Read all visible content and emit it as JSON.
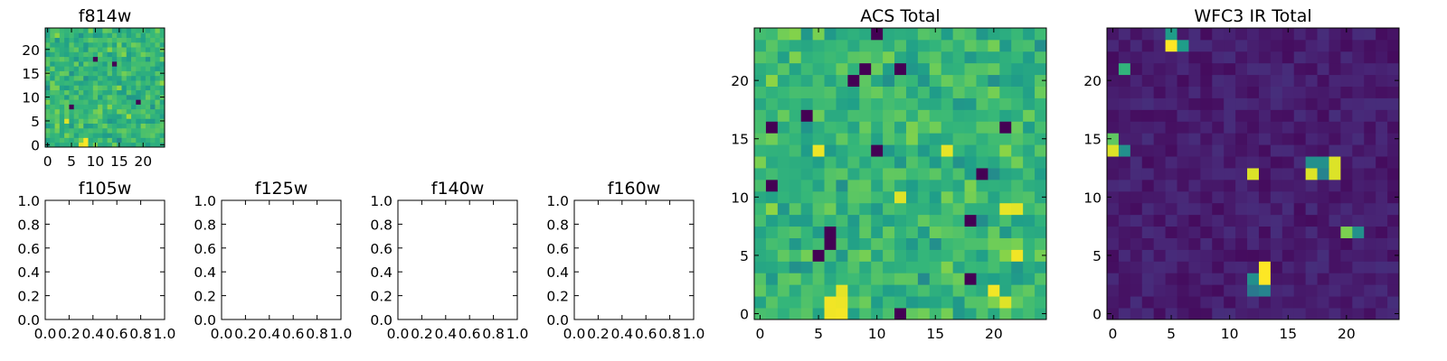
{
  "chart_data": [
    {
      "type": "heatmap",
      "title": "f814w",
      "colormap": "viridis",
      "shape": [
        25,
        25
      ],
      "xlim": [
        -0.5,
        24.5
      ],
      "ylim": [
        -0.5,
        24.5
      ],
      "xticks": [
        0,
        5,
        10,
        15,
        20
      ],
      "yticks": [
        0,
        5,
        10,
        15,
        20
      ],
      "xtick_labels": [
        "0",
        "5",
        "10",
        "15",
        "20"
      ],
      "ytick_labels": [
        "0",
        "5",
        "10",
        "15",
        "20"
      ],
      "style": "noise",
      "seed": 11,
      "bright_cells": [
        [
          7,
          0
        ],
        [
          8,
          0
        ],
        [
          8,
          1
        ],
        [
          4,
          5
        ]
      ],
      "dark_cells": [
        [
          5,
          8
        ],
        [
          10,
          18
        ],
        [
          14,
          17
        ],
        [
          19,
          9
        ]
      ]
    },
    {
      "type": "empty",
      "title": "f105w",
      "xlim": [
        0,
        1
      ],
      "ylim": [
        0,
        1
      ],
      "xtick_labels": [
        "0.0",
        "0.2",
        "0.4",
        "0.6",
        "0.8",
        "1.0"
      ],
      "ytick_labels": [
        "0.0",
        "0.2",
        "0.4",
        "0.6",
        "0.8",
        "1.0"
      ]
    },
    {
      "type": "empty",
      "title": "f125w",
      "xlim": [
        0,
        1
      ],
      "ylim": [
        0,
        1
      ],
      "xtick_labels": [
        "0.0",
        "0.2",
        "0.4",
        "0.6",
        "0.8",
        "1.0"
      ],
      "ytick_labels": [
        "0.0",
        "0.2",
        "0.4",
        "0.6",
        "0.8",
        "1.0"
      ]
    },
    {
      "type": "empty",
      "title": "f140w",
      "xlim": [
        0,
        1
      ],
      "ylim": [
        0,
        1
      ],
      "xtick_labels": [
        "0.0",
        "0.2",
        "0.4",
        "0.6",
        "0.8",
        "1.0"
      ],
      "ytick_labels": [
        "0.0",
        "0.2",
        "0.4",
        "0.6",
        "0.8",
        "1.0"
      ]
    },
    {
      "type": "empty",
      "title": "f160w",
      "xlim": [
        0,
        1
      ],
      "ylim": [
        0,
        1
      ],
      "xtick_labels": [
        "0.0",
        "0.2",
        "0.4",
        "0.6",
        "0.8",
        "1.0"
      ],
      "ytick_labels": [
        "0.0",
        "0.2",
        "0.4",
        "0.6",
        "0.8",
        "1.0"
      ]
    },
    {
      "type": "heatmap",
      "title": "ACS Total",
      "colormap": "viridis",
      "shape": [
        25,
        25
      ],
      "xlim": [
        -0.5,
        24.5
      ],
      "ylim": [
        -0.5,
        24.5
      ],
      "xticks": [
        0,
        5,
        10,
        15,
        20
      ],
      "yticks": [
        0,
        5,
        10,
        15,
        20
      ],
      "xtick_labels": [
        "0",
        "5",
        "10",
        "15",
        "20"
      ],
      "ytick_labels": [
        "0",
        "5",
        "10",
        "15",
        "20"
      ],
      "style": "noise",
      "seed": 29,
      "bright_cells": [
        [
          6,
          1
        ],
        [
          7,
          1
        ],
        [
          6,
          0
        ],
        [
          7,
          0
        ],
        [
          7,
          2
        ],
        [
          5,
          14
        ],
        [
          12,
          10
        ],
        [
          16,
          14
        ],
        [
          21,
          9
        ],
        [
          22,
          9
        ],
        [
          22,
          5
        ],
        [
          20,
          2
        ],
        [
          21,
          1
        ]
      ],
      "dark_cells": [
        [
          10,
          24
        ],
        [
          4,
          17
        ],
        [
          1,
          16
        ],
        [
          9,
          21
        ],
        [
          12,
          21
        ],
        [
          8,
          20
        ],
        [
          6,
          6
        ],
        [
          6,
          7
        ],
        [
          5,
          5
        ],
        [
          18,
          3
        ],
        [
          18,
          8
        ],
        [
          19,
          12
        ],
        [
          21,
          16
        ],
        [
          10,
          14
        ],
        [
          1,
          11
        ],
        [
          12,
          0
        ]
      ]
    },
    {
      "type": "heatmap",
      "title": "WFC3 IR Total",
      "colormap": "viridis",
      "shape": [
        25,
        25
      ],
      "xlim": [
        -0.5,
        24.5
      ],
      "ylim": [
        -0.5,
        24.5
      ],
      "xticks": [
        0,
        5,
        10,
        15,
        20
      ],
      "yticks": [
        0,
        5,
        10,
        15,
        20
      ],
      "xtick_labels": [
        "0",
        "5",
        "10",
        "15",
        "20"
      ],
      "ytick_labels": [
        "0",
        "5",
        "10",
        "15",
        "20"
      ],
      "style": "sparse",
      "seed": 7,
      "sources": [
        [
          5,
          23,
          1.0
        ],
        [
          5,
          24,
          0.55
        ],
        [
          6,
          23,
          0.55
        ],
        [
          1,
          21,
          0.65
        ],
        [
          0,
          15,
          0.75
        ],
        [
          0,
          14,
          0.95
        ],
        [
          1,
          14,
          0.5
        ],
        [
          12,
          12,
          0.95
        ],
        [
          17,
          13,
          0.5
        ],
        [
          18,
          13,
          0.5
        ],
        [
          17,
          12,
          0.95
        ],
        [
          19,
          13,
          0.95
        ],
        [
          19,
          12,
          0.95
        ],
        [
          18,
          12,
          0.45
        ],
        [
          20,
          7,
          0.8
        ],
        [
          21,
          7,
          0.5
        ],
        [
          13,
          4,
          1.0
        ],
        [
          13,
          3,
          1.0
        ],
        [
          12,
          3,
          0.5
        ],
        [
          12,
          2,
          0.4
        ],
        [
          13,
          2,
          0.45
        ]
      ]
    }
  ]
}
